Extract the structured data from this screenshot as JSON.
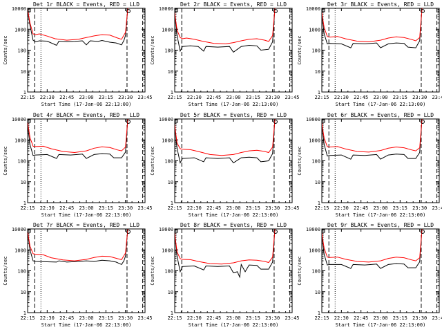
{
  "chart_data": {
    "type": "line",
    "grid": false,
    "legend": "none",
    "xlim": [
      22.25,
      23.75
    ],
    "ylim": [
      1,
      10000
    ],
    "yscale": "log",
    "xtick_values": [
      22.25,
      22.5,
      22.75,
      23.0,
      23.25,
      23.5,
      23.75
    ],
    "xtick_labels": [
      "22:15",
      "22:30",
      "22:45",
      "23:00",
      "23:15",
      "23:30",
      "23:45"
    ],
    "ytick_values": [
      1,
      10,
      100,
      1000,
      10000
    ],
    "ytick_labels": [
      "1",
      "10",
      "100",
      "1000",
      "10000"
    ],
    "ylabel": "Counts/sec",
    "xlabel": "Start Time (17-Jan-06 22:13:00)",
    "series_colors": {
      "events": "#000000",
      "lld": "#ff0000"
    },
    "panels": [
      {
        "title": "Det 1r BLACK = Events, RED = LLD",
        "markers": {
          "dashed": [
            22.34,
            23.52,
            23.72
          ],
          "dotted": [
            22.42
          ]
        },
        "series": [
          {
            "name": "Events",
            "color": "#000000",
            "x": [
              22.23,
              22.25,
              22.28,
              22.32,
              22.35,
              22.4,
              22.5,
              22.62,
              22.65,
              22.75,
              22.85,
              22.95,
              23.0,
              23.05,
              23.15,
              23.2,
              23.3,
              23.38,
              23.45,
              23.48,
              23.5,
              23.53
            ],
            "y": [
              10000,
              8000,
              1500,
              300,
              250,
              280,
              270,
              170,
              270,
              250,
              260,
              280,
              180,
              280,
              260,
              290,
              240,
              220,
              180,
              290,
              500,
              10000
            ]
          },
          {
            "name": "LLD",
            "color": "#ff0000",
            "x": [
              22.23,
              22.25,
              22.28,
              22.32,
              22.35,
              22.4,
              22.5,
              22.6,
              22.75,
              22.9,
              23.0,
              23.1,
              23.2,
              23.3,
              23.4,
              23.45,
              23.5,
              23.53
            ],
            "y": [
              10000,
              9000,
              2000,
              600,
              550,
              600,
              470,
              350,
              300,
              330,
              400,
              480,
              550,
              520,
              380,
              330,
              700,
              10000
            ]
          }
        ]
      },
      {
        "title": "Det 2r BLACK = Events, RED = LLD",
        "markers": {
          "dashed": [
            22.34,
            23.52,
            23.72
          ],
          "dotted": []
        },
        "series": [
          {
            "name": "Events",
            "color": "#000000",
            "x": [
              22.23,
              22.25,
              22.28,
              22.32,
              22.35,
              22.45,
              22.55,
              22.62,
              22.65,
              22.8,
              22.95,
              23.0,
              23.1,
              23.2,
              23.3,
              23.35,
              23.45,
              23.5,
              23.53
            ],
            "y": [
              10000,
              5000,
              500,
              90,
              150,
              160,
              150,
              90,
              150,
              140,
              150,
              80,
              150,
              170,
              160,
              100,
              110,
              250,
              10000
            ]
          },
          {
            "name": "LLD",
            "color": "#ff0000",
            "x": [
              22.23,
              22.25,
              22.28,
              22.32,
              22.35,
              22.4,
              22.5,
              22.6,
              22.75,
              22.9,
              23.0,
              23.1,
              23.2,
              23.3,
              23.4,
              23.45,
              23.5,
              23.53
            ],
            "y": [
              10000,
              6000,
              900,
              400,
              350,
              380,
              330,
              270,
              210,
              200,
              230,
              280,
              330,
              350,
              300,
              260,
              500,
              10000
            ]
          }
        ]
      },
      {
        "title": "Det 3r BLACK = Events, RED = LLD",
        "markers": {
          "dashed": [
            22.34,
            23.52,
            23.72
          ],
          "dotted": [
            22.42
          ]
        },
        "series": [
          {
            "name": "Events",
            "color": "#000000",
            "x": [
              22.23,
              22.25,
              22.28,
              22.32,
              22.35,
              22.5,
              22.62,
              22.65,
              22.8,
              22.95,
              23.0,
              23.1,
              23.2,
              23.3,
              23.35,
              23.45,
              23.5,
              23.53
            ],
            "y": [
              10000,
              5000,
              600,
              200,
              210,
              200,
              130,
              210,
              200,
              220,
              130,
              200,
              220,
              210,
              140,
              130,
              280,
              10000
            ]
          },
          {
            "name": "LLD",
            "color": "#ff0000",
            "x": [
              22.23,
              22.25,
              22.28,
              22.32,
              22.35,
              22.45,
              22.55,
              22.7,
              22.85,
              23.0,
              23.1,
              23.2,
              23.3,
              23.4,
              23.45,
              23.5,
              23.53
            ],
            "y": [
              10000,
              6000,
              1200,
              450,
              420,
              450,
              350,
              270,
              250,
              300,
              380,
              430,
              400,
              320,
              280,
              400,
              10000
            ]
          }
        ]
      },
      {
        "title": "Det 4r BLACK = Events, RED = LLD",
        "markers": {
          "dashed": [
            22.34,
            23.52,
            23.72
          ],
          "dotted": [
            22.42
          ]
        },
        "series": [
          {
            "name": "Events",
            "color": "#000000",
            "x": [
              22.23,
              22.25,
              22.28,
              22.32,
              22.35,
              22.5,
              22.62,
              22.65,
              22.8,
              22.95,
              23.0,
              23.1,
              23.2,
              23.3,
              23.35,
              23.45,
              23.5,
              23.53
            ],
            "y": [
              10000,
              5000,
              600,
              180,
              190,
              200,
              130,
              200,
              190,
              210,
              130,
              200,
              220,
              210,
              140,
              140,
              260,
              10000
            ]
          },
          {
            "name": "LLD",
            "color": "#ff0000",
            "x": [
              22.23,
              22.25,
              22.28,
              22.32,
              22.35,
              22.45,
              22.55,
              22.7,
              22.85,
              23.0,
              23.1,
              23.2,
              23.3,
              23.4,
              23.45,
              23.5,
              23.53
            ],
            "y": [
              10000,
              7000,
              1300,
              500,
              480,
              500,
              380,
              280,
              250,
              300,
              400,
              470,
              430,
              330,
              300,
              450,
              10000
            ]
          }
        ]
      },
      {
        "title": "Det 5r BLACK = Events, RED = LLD",
        "markers": {
          "dashed": [
            22.34,
            23.52,
            23.72
          ],
          "dotted": []
        },
        "series": [
          {
            "name": "Events",
            "color": "#000000",
            "x": [
              22.23,
              22.25,
              22.28,
              22.32,
              22.35,
              22.5,
              22.62,
              22.65,
              22.8,
              22.95,
              23.0,
              23.1,
              23.2,
              23.3,
              23.35,
              23.45,
              23.5,
              23.53
            ],
            "y": [
              10000,
              4000,
              400,
              80,
              130,
              140,
              90,
              140,
              130,
              140,
              80,
              140,
              150,
              140,
              90,
              100,
              220,
              10000
            ]
          },
          {
            "name": "LLD",
            "color": "#ff0000",
            "x": [
              22.23,
              22.25,
              22.28,
              22.32,
              22.35,
              22.45,
              22.55,
              22.7,
              22.85,
              23.0,
              23.1,
              23.2,
              23.3,
              23.4,
              23.45,
              23.5,
              23.53
            ],
            "y": [
              10000,
              5000,
              700,
              380,
              360,
              340,
              280,
              200,
              180,
              200,
              250,
              300,
              320,
              280,
              250,
              450,
              10000
            ]
          }
        ]
      },
      {
        "title": "Det 6r BLACK = Events, RED = LLD",
        "markers": {
          "dashed": [
            22.34,
            23.52,
            23.72
          ],
          "dotted": [
            22.42
          ]
        },
        "series": [
          {
            "name": "Events",
            "color": "#000000",
            "x": [
              22.23,
              22.25,
              22.28,
              22.32,
              22.35,
              22.5,
              22.62,
              22.65,
              22.8,
              22.95,
              23.0,
              23.1,
              23.2,
              23.3,
              23.35,
              23.45,
              23.5,
              23.53
            ],
            "y": [
              10000,
              5000,
              600,
              170,
              180,
              190,
              120,
              190,
              180,
              200,
              120,
              190,
              210,
              200,
              130,
              130,
              250,
              10000
            ]
          },
          {
            "name": "LLD",
            "color": "#ff0000",
            "x": [
              22.23,
              22.25,
              22.28,
              22.32,
              22.35,
              22.45,
              22.55,
              22.7,
              22.85,
              23.0,
              23.1,
              23.2,
              23.3,
              23.4,
              23.45,
              23.5,
              23.53
            ],
            "y": [
              10000,
              6000,
              1200,
              480,
              460,
              480,
              370,
              280,
              260,
              310,
              400,
              460,
              420,
              330,
              300,
              420,
              10000
            ]
          }
        ]
      },
      {
        "title": "Det 7r BLACK = Events, RED = LLD",
        "markers": {
          "dashed": [
            22.34,
            23.52,
            23.72
          ],
          "dotted": [
            22.42
          ]
        },
        "series": [
          {
            "name": "Events",
            "color": "#000000",
            "x": [
              22.23,
              22.25,
              22.28,
              22.32,
              22.35,
              22.5,
              22.62,
              22.65,
              22.75,
              22.9,
              23.0,
              23.1,
              23.2,
              23.3,
              23.38,
              23.45,
              23.48,
              23.5,
              23.53
            ],
            "y": [
              10000,
              7000,
              1000,
              300,
              280,
              270,
              260,
              300,
              260,
              280,
              300,
              280,
              320,
              300,
              260,
              200,
              300,
              500,
              10000
            ]
          },
          {
            "name": "LLD",
            "color": "#ff0000",
            "x": [
              22.23,
              22.25,
              22.28,
              22.32,
              22.35,
              22.45,
              22.55,
              22.7,
              22.85,
              23.0,
              23.1,
              23.2,
              23.3,
              23.4,
              23.45,
              23.5,
              23.53
            ],
            "y": [
              10000,
              8000,
              1500,
              650,
              620,
              580,
              420,
              330,
              300,
              350,
              430,
              500,
              480,
              380,
              340,
              700,
              10000
            ]
          }
        ]
      },
      {
        "title": "Det 8r BLACK = Events, RED = LLD",
        "markers": {
          "dashed": [
            22.34,
            23.52,
            23.72
          ],
          "dotted": []
        },
        "series": [
          {
            "name": "Events",
            "color": "#000000",
            "x": [
              22.23,
              22.25,
              22.28,
              22.32,
              22.35,
              22.5,
              22.62,
              22.65,
              22.8,
              22.95,
              23.0,
              23.05,
              23.08,
              23.1,
              23.15,
              23.2,
              23.3,
              23.35,
              23.45,
              23.5,
              23.53
            ],
            "y": [
              10000,
              5000,
              500,
              90,
              160,
              170,
              110,
              170,
              160,
              170,
              80,
              90,
              50,
              200,
              90,
              190,
              180,
              120,
              120,
              260,
              10000
            ]
          },
          {
            "name": "LLD",
            "color": "#ff0000",
            "x": [
              22.23,
              22.25,
              22.28,
              22.32,
              22.35,
              22.45,
              22.55,
              22.7,
              22.85,
              23.0,
              23.1,
              23.2,
              23.3,
              23.4,
              23.45,
              23.5,
              23.53
            ],
            "y": [
              10000,
              6000,
              800,
              380,
              350,
              340,
              280,
              220,
              210,
              240,
              300,
              330,
              320,
              280,
              250,
              450,
              10000
            ]
          }
        ]
      },
      {
        "title": "Det 9r BLACK = Events, RED = LLD",
        "markers": {
          "dashed": [
            22.34,
            23.52,
            23.72
          ],
          "dotted": [
            22.42
          ]
        },
        "series": [
          {
            "name": "Events",
            "color": "#000000",
            "x": [
              22.23,
              22.25,
              22.28,
              22.32,
              22.35,
              22.5,
              22.62,
              22.65,
              22.8,
              22.95,
              23.0,
              23.1,
              23.2,
              23.3,
              23.35,
              23.45,
              23.5,
              23.53
            ],
            "y": [
              10000,
              5000,
              600,
              190,
              200,
              200,
              130,
              200,
              190,
              210,
              130,
              200,
              220,
              210,
              140,
              140,
              270,
              10000
            ]
          },
          {
            "name": "LLD",
            "color": "#ff0000",
            "x": [
              22.23,
              22.25,
              22.28,
              22.32,
              22.35,
              22.45,
              22.55,
              22.7,
              22.85,
              23.0,
              23.1,
              23.2,
              23.3,
              23.4,
              23.45,
              23.5,
              23.53
            ],
            "y": [
              10000,
              6000,
              1200,
              450,
              430,
              450,
              360,
              280,
              260,
              300,
              390,
              450,
              420,
              330,
              300,
              420,
              10000
            ]
          }
        ]
      }
    ]
  }
}
